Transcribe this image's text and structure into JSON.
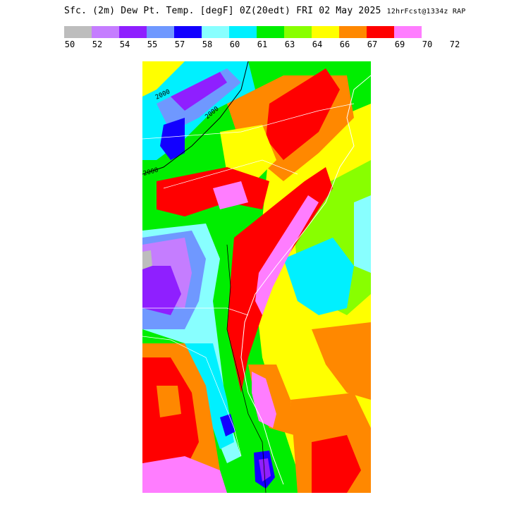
{
  "title": {
    "main": "Sfc. (2m) Dew Pt. Temp. [degF] 0Z(20edt) FRI 02 May 2025",
    "run": "12hrFcst@1334z RAP"
  },
  "legend": {
    "colors": [
      "#bdbdbd",
      "#c57dff",
      "#8f1fff",
      "#6f98ff",
      "#1200ff",
      "#88ffff",
      "#00f0ff",
      "#00ee00",
      "#88ff00",
      "#ffff00",
      "#ff8800",
      "#ff0000",
      "#ff7dff"
    ],
    "ticks": [
      "50",
      "52",
      "54",
      "55",
      "57",
      "58",
      "60",
      "61",
      "63",
      "64",
      "66",
      "67",
      "69",
      "70",
      "72"
    ]
  },
  "map": {
    "contour_labels": [
      "2000",
      "2000",
      "2000"
    ]
  }
}
